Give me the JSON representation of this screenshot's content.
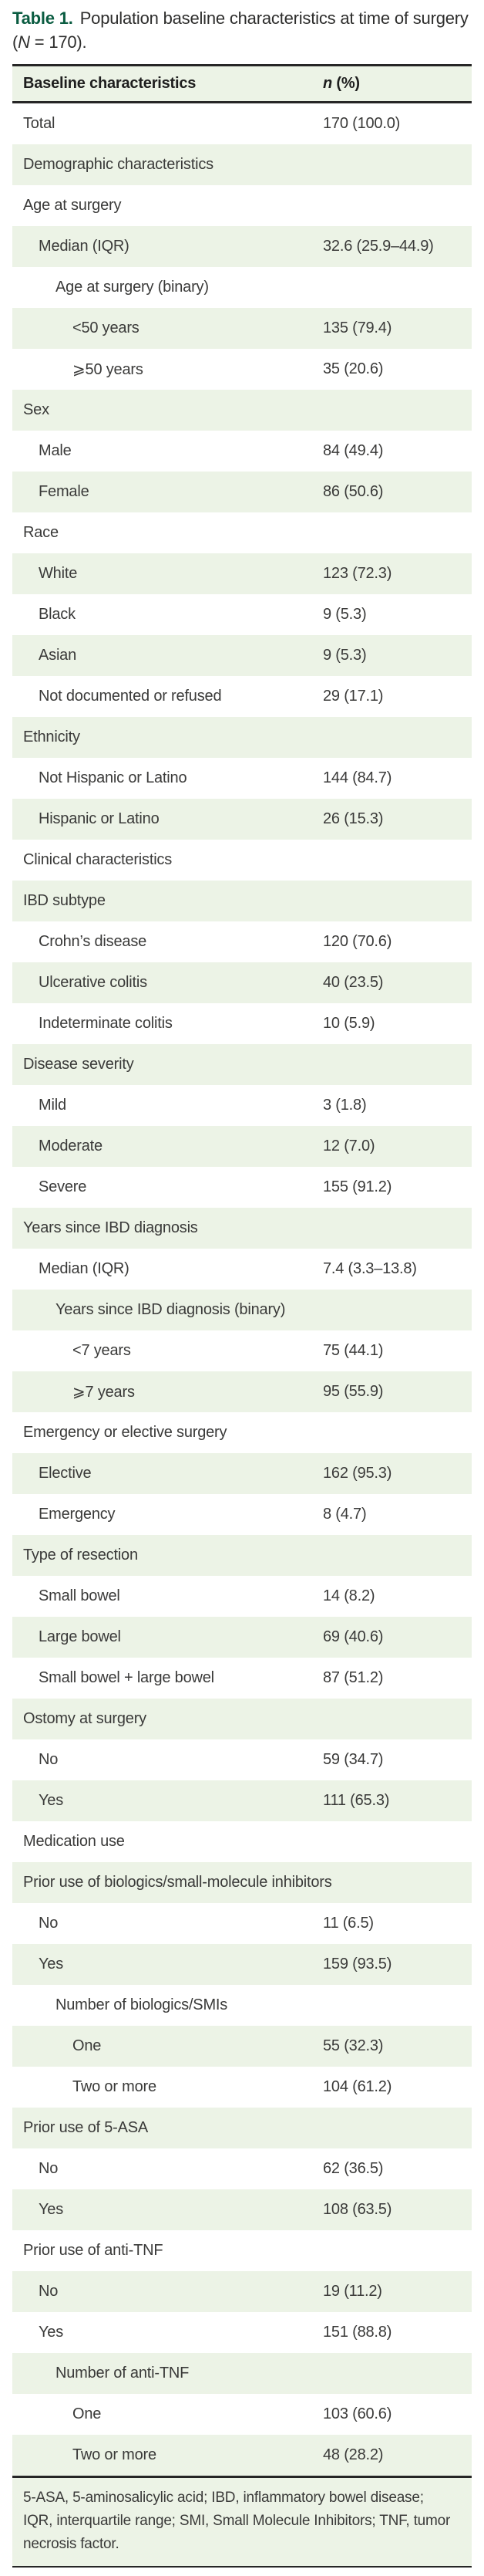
{
  "title": {
    "label": "Table 1.",
    "text_before_n": "Population baseline characteristics at time of surgery (",
    "n": "N",
    "text_after_n": " = 170)."
  },
  "table": {
    "header": {
      "col1": "Baseline characteristics",
      "col2_n": "n",
      "col2_rest": " (%)"
    },
    "rows": [
      {
        "label": "Total",
        "value": "170 (100.0)",
        "indent": 0
      },
      {
        "label": "Demographic characteristics",
        "value": "",
        "indent": 0
      },
      {
        "label": "Age at surgery",
        "value": "",
        "indent": 0
      },
      {
        "label": "Median (IQR)",
        "value": "32.6 (25.9–44.9)",
        "indent": 1
      },
      {
        "label": "Age at surgery (binary)",
        "value": "",
        "indent": 2
      },
      {
        "label": "<50 years",
        "value": "135 (79.4)",
        "indent": 3
      },
      {
        "label": "⩾50 years",
        "value": "35 (20.6)",
        "indent": 3
      },
      {
        "label": "Sex",
        "value": "",
        "indent": 0
      },
      {
        "label": "Male",
        "value": "84 (49.4)",
        "indent": 1
      },
      {
        "label": "Female",
        "value": "86 (50.6)",
        "indent": 1
      },
      {
        "label": "Race",
        "value": "",
        "indent": 0
      },
      {
        "label": "White",
        "value": "123 (72.3)",
        "indent": 1
      },
      {
        "label": "Black",
        "value": "9 (5.3)",
        "indent": 1
      },
      {
        "label": "Asian",
        "value": "9 (5.3)",
        "indent": 1
      },
      {
        "label": "Not documented or refused",
        "value": "29 (17.1)",
        "indent": 1
      },
      {
        "label": "Ethnicity",
        "value": "",
        "indent": 0
      },
      {
        "label": "Not Hispanic or Latino",
        "value": "144 (84.7)",
        "indent": 1
      },
      {
        "label": "Hispanic or Latino",
        "value": "26 (15.3)",
        "indent": 1
      },
      {
        "label": "Clinical characteristics",
        "value": "",
        "indent": 0
      },
      {
        "label": "IBD subtype",
        "value": "",
        "indent": 0
      },
      {
        "label": "Crohn’s disease",
        "value": "120 (70.6)",
        "indent": 1
      },
      {
        "label": "Ulcerative colitis",
        "value": "40 (23.5)",
        "indent": 1
      },
      {
        "label": "Indeterminate colitis",
        "value": "10 (5.9)",
        "indent": 1
      },
      {
        "label": "Disease severity",
        "value": "",
        "indent": 0
      },
      {
        "label": "Mild",
        "value": "3 (1.8)",
        "indent": 1
      },
      {
        "label": "Moderate",
        "value": "12 (7.0)",
        "indent": 1
      },
      {
        "label": "Severe",
        "value": "155 (91.2)",
        "indent": 1
      },
      {
        "label": "Years since IBD diagnosis",
        "value": "",
        "indent": 0
      },
      {
        "label": "Median (IQR)",
        "value": "7.4 (3.3–13.8)",
        "indent": 1
      },
      {
        "label": "Years since IBD diagnosis (binary)",
        "value": "",
        "indent": 2
      },
      {
        "label": "<7 years",
        "value": "75 (44.1)",
        "indent": 3
      },
      {
        "label": "⩾7 years",
        "value": "95 (55.9)",
        "indent": 3
      },
      {
        "label": "Emergency or elective surgery",
        "value": "",
        "indent": 0
      },
      {
        "label": "Elective",
        "value": "162 (95.3)",
        "indent": 1
      },
      {
        "label": "Emergency",
        "value": "8 (4.7)",
        "indent": 1
      },
      {
        "label": "Type of resection",
        "value": "",
        "indent": 0
      },
      {
        "label": "Small bowel",
        "value": "14 (8.2)",
        "indent": 1
      },
      {
        "label": "Large bowel",
        "value": "69 (40.6)",
        "indent": 1
      },
      {
        "label": "Small bowel + large bowel",
        "value": "87 (51.2)",
        "indent": 1
      },
      {
        "label": "Ostomy at surgery",
        "value": "",
        "indent": 0
      },
      {
        "label": "No",
        "value": "59 (34.7)",
        "indent": 1
      },
      {
        "label": "Yes",
        "value": "111 (65.3)",
        "indent": 1
      },
      {
        "label": "Medication use",
        "value": "",
        "indent": 0
      },
      {
        "label": "Prior use of biologics/small-molecule inhibitors",
        "value": "",
        "indent": 0
      },
      {
        "label": "No",
        "value": "11 (6.5)",
        "indent": 1
      },
      {
        "label": "Yes",
        "value": "159 (93.5)",
        "indent": 1
      },
      {
        "label": "Number of biologics/SMIs",
        "value": "",
        "indent": 2
      },
      {
        "label": "One",
        "value": "55 (32.3)",
        "indent": 3
      },
      {
        "label": "Two or more",
        "value": "104 (61.2)",
        "indent": 3
      },
      {
        "label": "Prior use of 5-ASA",
        "value": "",
        "indent": 0
      },
      {
        "label": "No",
        "value": "62 (36.5)",
        "indent": 1
      },
      {
        "label": "Yes",
        "value": "108 (63.5)",
        "indent": 1
      },
      {
        "label": "Prior use of anti-TNF",
        "value": "",
        "indent": 0
      },
      {
        "label": "No",
        "value": "19 (11.2)",
        "indent": 1
      },
      {
        "label": "Yes",
        "value": "151 (88.8)",
        "indent": 1
      },
      {
        "label": "Number of anti-TNF",
        "value": "",
        "indent": 2
      },
      {
        "label": "One",
        "value": "103 (60.6)",
        "indent": 3
      },
      {
        "label": "Two or more",
        "value": "48 (28.2)",
        "indent": 3
      }
    ],
    "footnote": "5-ASA, 5-aminosalicylic acid; IBD, inflammatory bowel disease; IQR, interquartile range; SMI, Small Molecule Inhibitors; TNF, tumor necrosis factor."
  },
  "colors": {
    "stripe": "#ecf3e6",
    "caption_label_green": "#0a5c41",
    "rule": "#262626",
    "body_text": "#3a3a39"
  }
}
